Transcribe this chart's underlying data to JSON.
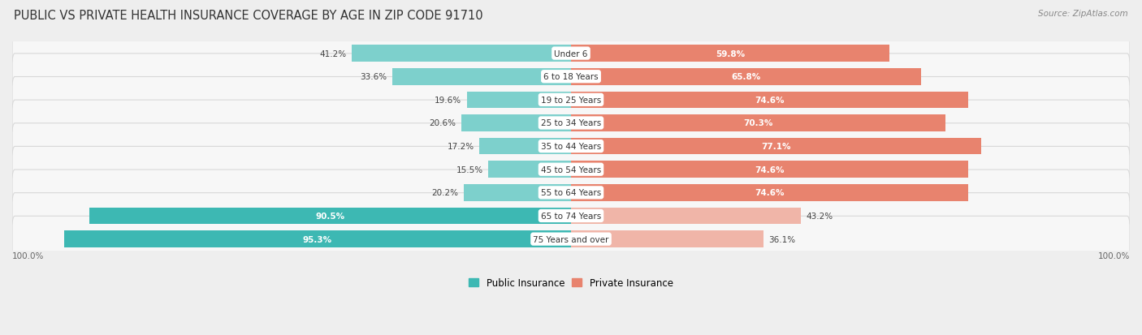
{
  "title": "PUBLIC VS PRIVATE HEALTH INSURANCE COVERAGE BY AGE IN ZIP CODE 91710",
  "source": "Source: ZipAtlas.com",
  "categories": [
    "Under 6",
    "6 to 18 Years",
    "19 to 25 Years",
    "25 to 34 Years",
    "35 to 44 Years",
    "45 to 54 Years",
    "55 to 64 Years",
    "65 to 74 Years",
    "75 Years and over"
  ],
  "public_values": [
    41.2,
    33.6,
    19.6,
    20.6,
    17.2,
    15.5,
    20.2,
    90.5,
    95.3
  ],
  "private_values": [
    59.8,
    65.8,
    74.6,
    70.3,
    77.1,
    74.6,
    74.6,
    43.2,
    36.1
  ],
  "public_color_dark": "#3db8b3",
  "public_color_light": "#7dd0cc",
  "private_color_dark": "#e8836e",
  "private_color_light": "#f0b5a8",
  "bg_color": "#eeeeee",
  "row_bg_color": "#f7f7f7",
  "row_border_color": "#d8d8d8",
  "title_fontsize": 10.5,
  "label_fontsize": 7.5,
  "value_fontsize": 7.5,
  "legend_fontsize": 8.5,
  "axis_label_fontsize": 7.5
}
